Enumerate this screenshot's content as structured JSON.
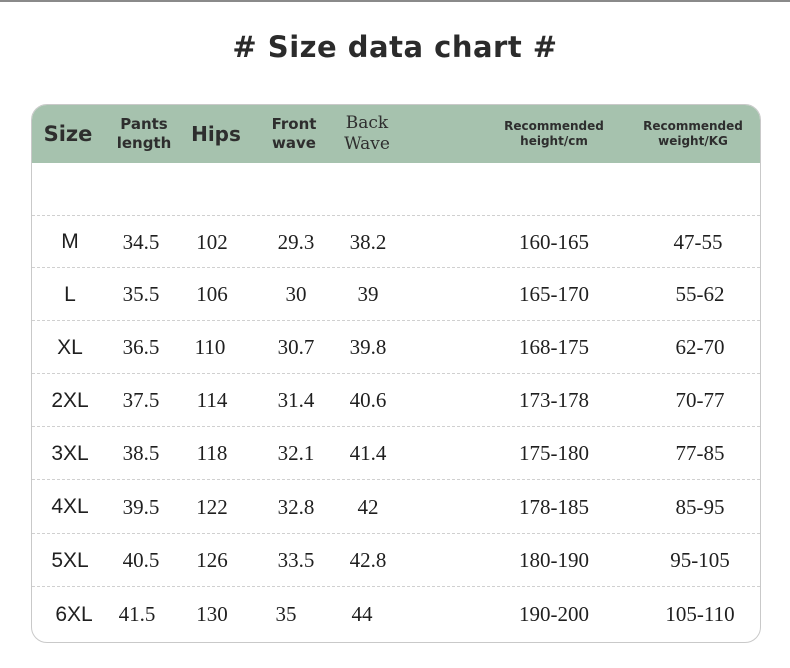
{
  "title": "# Size data chart #",
  "columns": [
    {
      "key": "size",
      "lines": [
        "Size"
      ]
    },
    {
      "key": "pants_length",
      "lines": [
        "Pants",
        "length"
      ]
    },
    {
      "key": "hips",
      "lines": [
        "Hips"
      ]
    },
    {
      "key": "front_wave",
      "lines": [
        "Front",
        "wave"
      ]
    },
    {
      "key": "back_wave",
      "lines": [
        "Back",
        "Wave"
      ]
    },
    {
      "key": "height",
      "lines": [
        "Recommended",
        "height/cm"
      ]
    },
    {
      "key": "weight",
      "lines": [
        "Recommended",
        "weight/KG"
      ]
    }
  ],
  "rows": [
    [
      "M",
      "34.5",
      "102",
      "29.3",
      "38.2",
      "160-165",
      "47-55"
    ],
    [
      "L",
      "35.5",
      "106",
      "30",
      "39",
      "165-170",
      "55-62"
    ],
    [
      "XL",
      "36.5",
      "110",
      "30.7",
      "39.8",
      "168-175",
      "62-70"
    ],
    [
      "2XL",
      "37.5",
      "114",
      "31.4",
      "40.6",
      "173-178",
      "70-77"
    ],
    [
      "3XL",
      "38.5",
      "118",
      "32.1",
      "41.4",
      "175-180",
      "77-85"
    ],
    [
      "4XL",
      "39.5",
      "122",
      "32.8",
      "42",
      "178-185",
      "85-95"
    ],
    [
      "5XL",
      "40.5",
      "126",
      "33.5",
      "42.8",
      "180-190",
      "95-105"
    ],
    [
      "6XL",
      "41.5",
      "130",
      "35",
      "44",
      "190-200",
      "105-110"
    ]
  ],
  "colors": {
    "header_bg": "#a6c2ae",
    "title": "#2b2b2b",
    "text": "#1f1f1f"
  }
}
